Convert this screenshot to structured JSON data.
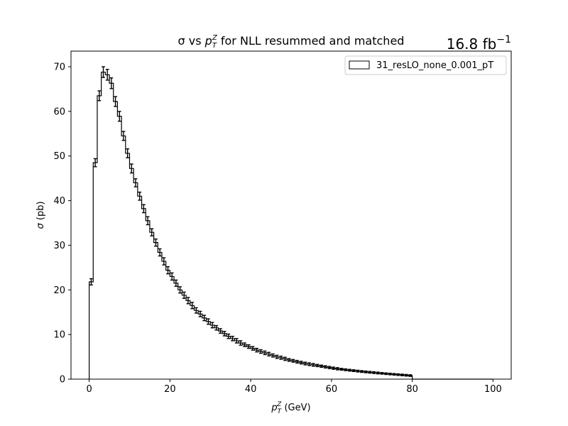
{
  "chart_data": {
    "type": "histogram",
    "title_pre": "σ vs ",
    "title_var": "p",
    "title_sub": "T",
    "title_sup": "Z",
    "title_post": " for NLL resummed and matched",
    "lumi_value": "16.8 fb",
    "lumi_exp": "−1",
    "xlabel_var": "p",
    "xlabel_sub": "T",
    "xlabel_sup": "Z",
    "xlabel_unit": " (GeV)",
    "ylabel_sym": "σ",
    "ylabel_unit": " (pb)",
    "xlim": [
      -4.5,
      104.5
    ],
    "ylim": [
      0,
      73.5
    ],
    "xticks": [
      0,
      20,
      40,
      60,
      80,
      100
    ],
    "yticks": [
      0,
      10,
      20,
      30,
      40,
      50,
      60,
      70
    ],
    "legend_position": "upper right",
    "series": [
      {
        "name": "31_resLO_none_0.001_pT",
        "bin_width": 1,
        "bin_start": 0,
        "values": [
          21.8,
          48.5,
          63.5,
          68.8,
          68.2,
          66.3,
          62.2,
          58.9,
          54.5,
          50.6,
          47.2,
          44.0,
          41.0,
          38.2,
          35.5,
          32.9,
          30.6,
          28.4,
          26.4,
          24.4,
          23.0,
          21.5,
          20.0,
          18.8,
          17.6,
          16.5,
          15.4,
          14.6,
          13.7,
          12.9,
          12.1,
          11.5,
          10.8,
          10.2,
          9.6,
          9.1,
          8.6,
          8.1,
          7.7,
          7.3,
          6.9,
          6.5,
          6.2,
          5.9,
          5.6,
          5.3,
          5.0,
          4.8,
          4.55,
          4.3,
          4.1,
          3.9,
          3.7,
          3.5,
          3.35,
          3.2,
          3.05,
          2.9,
          2.75,
          2.6,
          2.45,
          2.33,
          2.21,
          2.1,
          2.0,
          1.9,
          1.8,
          1.71,
          1.62,
          1.54,
          1.46,
          1.38,
          1.3,
          1.22,
          1.15,
          1.08,
          1.01,
          0.94,
          0.87,
          0.8
        ],
        "errors": [
          0.7,
          0.9,
          1.1,
          1.2,
          1.2,
          1.2,
          1.1,
          1.1,
          1.0,
          1.0,
          1.0,
          0.9,
          0.9,
          0.9,
          0.9,
          0.8,
          0.8,
          0.8,
          0.8,
          0.8,
          0.8,
          0.7,
          0.7,
          0.7,
          0.7,
          0.7,
          0.6,
          0.6,
          0.6,
          0.6,
          0.6,
          0.5,
          0.5,
          0.5,
          0.5,
          0.5,
          0.5,
          0.5,
          0.4,
          0.4,
          0.4,
          0.4,
          0.4,
          0.4,
          0.4,
          0.35,
          0.35,
          0.35,
          0.35,
          0.3,
          0.3,
          0.3,
          0.3,
          0.3,
          0.3,
          0.3,
          0.25,
          0.25,
          0.25,
          0.25,
          0.25,
          0.25,
          0.2,
          0.2,
          0.2,
          0.2,
          0.2,
          0.2,
          0.2,
          0.2,
          0.2,
          0.2,
          0.18,
          0.18,
          0.18,
          0.18,
          0.18,
          0.18,
          0.18,
          0.18
        ],
        "tail": {
          "x_start": 80,
          "x_end": 100,
          "value": 0.0
        },
        "color": "#000000"
      }
    ],
    "grid": false
  }
}
